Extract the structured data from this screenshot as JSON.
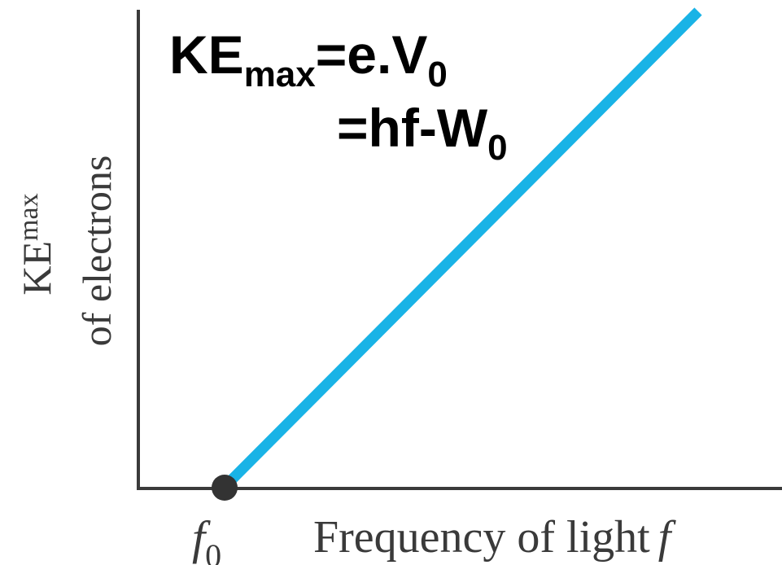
{
  "chart_data": {
    "type": "line",
    "xlabel": "Frequency of light",
    "xlabel_symbol": "f",
    "ylabel": {
      "line1_main": "KE",
      "line1_sub": "max",
      "line2": "of electrons"
    },
    "x_tick": {
      "symbol": "f",
      "subscript": "0"
    },
    "series": [
      {
        "color": "#19b3e6",
        "points": [
          {
            "x": "f0",
            "y": 0
          },
          {
            "x": "high",
            "y": "high"
          }
        ]
      }
    ],
    "threshold_marker": {
      "color": "#333333"
    },
    "annotation": {
      "line1": {
        "a_main": "KE",
        "a_sub": "max",
        "b_main": "=e.V",
        "b_sub": "0"
      },
      "line2": {
        "a_main": "=hf-W",
        "a_sub": "0"
      }
    },
    "axis_color": "#3a3a3a",
    "grid": false
  }
}
